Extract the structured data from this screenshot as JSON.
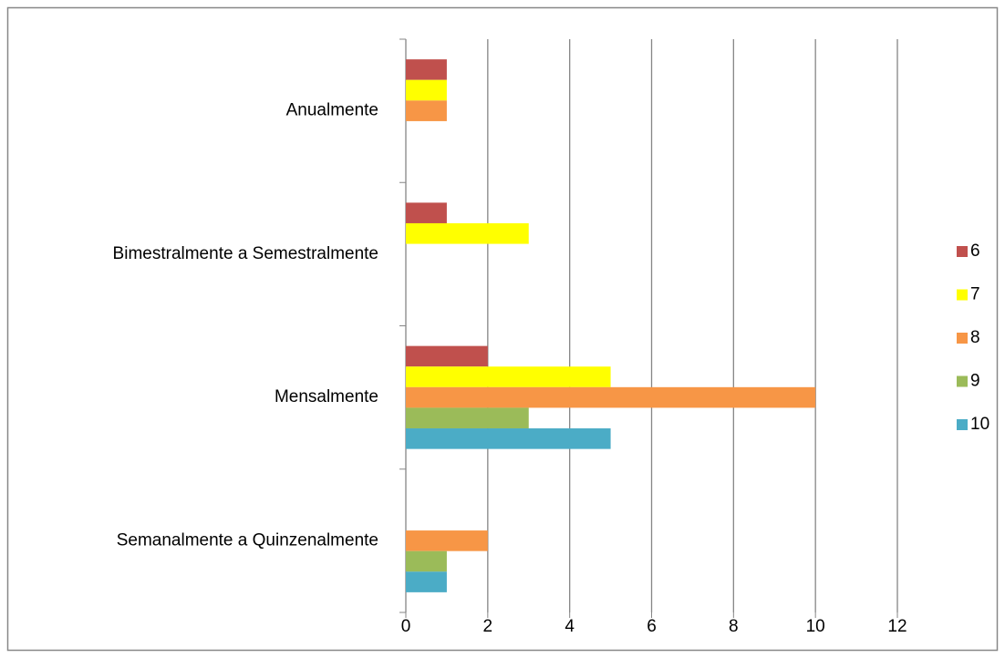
{
  "chart_data": {
    "type": "bar",
    "orientation": "horizontal",
    "categories": [
      "Anualmente",
      "Bimestralmente a Semestralmente",
      "Mensalmente",
      "Semanalmente a Quinzenalmente"
    ],
    "series": [
      {
        "name": "6",
        "color": "#c0504d",
        "values": [
          1,
          1,
          2,
          0
        ]
      },
      {
        "name": "7",
        "color": "#ffff00",
        "values": [
          1,
          3,
          5,
          0
        ]
      },
      {
        "name": "8",
        "color": "#f79646",
        "values": [
          1,
          0,
          10,
          2
        ]
      },
      {
        "name": "9",
        "color": "#9bbb59",
        "values": [
          0,
          0,
          3,
          1
        ]
      },
      {
        "name": "10",
        "color": "#4bacc6",
        "values": [
          0,
          0,
          5,
          1
        ]
      }
    ],
    "xlim": [
      0,
      12
    ],
    "xticks": [
      0,
      2,
      4,
      6,
      8,
      10,
      12
    ],
    "grid": true,
    "legend": "right"
  }
}
